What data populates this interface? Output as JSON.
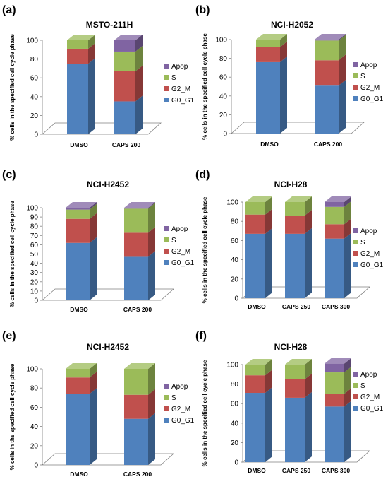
{
  "colors": {
    "G0_G1": "#4f81bd",
    "G2_M": "#c0504d",
    "S": "#9bbb59",
    "Apop": "#8064a2"
  },
  "chart_data": [
    {
      "panel": "(a)",
      "type": "bar",
      "stacked": true,
      "style": "3d-cylinder-stack",
      "title": "MSTO-211H",
      "ylabel": "% cells in the specified cell cycle phase",
      "ylim": [
        0,
        100
      ],
      "yticks": [
        0,
        20,
        40,
        60,
        80,
        100
      ],
      "categories": [
        "DMSO",
        "CAPS 200"
      ],
      "legend_position": "right",
      "series": [
        {
          "name": "G0_G1",
          "values": [
            75,
            35
          ]
        },
        {
          "name": "G2_M",
          "values": [
            16,
            32
          ]
        },
        {
          "name": "S",
          "values": [
            9,
            21
          ]
        },
        {
          "name": "Apop",
          "values": [
            0,
            12
          ]
        }
      ]
    },
    {
      "panel": "(b)",
      "type": "bar",
      "stacked": true,
      "style": "3d-cylinder-stack",
      "title": "NCI-H2052",
      "ylabel": "% cells in the specified cell cycle phase",
      "ylim": [
        0,
        100
      ],
      "yticks": [
        0,
        20,
        40,
        60,
        80,
        100
      ],
      "categories": [
        "DMSO",
        "CAPS 200"
      ],
      "legend_position": "right",
      "series": [
        {
          "name": "G0_G1",
          "values": [
            76,
            51
          ]
        },
        {
          "name": "G2_M",
          "values": [
            16,
            27
          ]
        },
        {
          "name": "S",
          "values": [
            8,
            21
          ]
        },
        {
          "name": "Apop",
          "values": [
            0,
            1
          ]
        }
      ]
    },
    {
      "panel": "(c)",
      "type": "bar",
      "stacked": true,
      "style": "3d-cylinder-stack",
      "title": "NCI-H2452",
      "ylabel": "% cells in the specified cell cycle phase",
      "ylim": [
        0,
        100
      ],
      "yticks": [
        0,
        10,
        20,
        30,
        40,
        50,
        60,
        70,
        80,
        90,
        100
      ],
      "categories": [
        "DMSO",
        "CAPS 200"
      ],
      "legend_position": "right",
      "series": [
        {
          "name": "G0_G1",
          "values": [
            62,
            47
          ]
        },
        {
          "name": "G2_M",
          "values": [
            26,
            26
          ]
        },
        {
          "name": "S",
          "values": [
            10,
            26
          ]
        },
        {
          "name": "Apop",
          "values": [
            2,
            1
          ]
        }
      ]
    },
    {
      "panel": "(d)",
      "type": "bar",
      "stacked": true,
      "style": "3d-cylinder-stack",
      "title": "NCI-H28",
      "ylabel": "% cells in the specified cell cycle phase",
      "ylim": [
        0,
        100
      ],
      "yticks": [
        0,
        20,
        40,
        60,
        80,
        100
      ],
      "categories": [
        "DMSO",
        "CAPS 250",
        "CAPS 300"
      ],
      "legend_position": "right",
      "series": [
        {
          "name": "G0_G1",
          "values": [
            67,
            67,
            62
          ]
        },
        {
          "name": "G2_M",
          "values": [
            20,
            19,
            15
          ]
        },
        {
          "name": "S",
          "values": [
            13,
            14,
            18
          ]
        },
        {
          "name": "Apop",
          "values": [
            0,
            0,
            5
          ]
        }
      ]
    },
    {
      "panel": "(e)",
      "type": "bar",
      "stacked": true,
      "style": "3d-cylinder-stack",
      "title": "NCI-H2452",
      "ylabel": "% cells in the specified cell cycle phase",
      "ylim": [
        0,
        100
      ],
      "yticks": [
        0,
        20,
        40,
        60,
        80,
        100
      ],
      "categories": [
        "DMSO",
        "CAPS 200"
      ],
      "legend_position": "right",
      "series": [
        {
          "name": "G0_G1",
          "values": [
            74,
            48
          ]
        },
        {
          "name": "G2_M",
          "values": [
            17,
            25
          ]
        },
        {
          "name": "S",
          "values": [
            9,
            27
          ]
        },
        {
          "name": "Apop",
          "values": [
            0,
            0
          ]
        }
      ]
    },
    {
      "panel": "(f)",
      "type": "bar",
      "stacked": true,
      "style": "3d-cylinder-stack",
      "title": "NCI-H28",
      "ylabel": "% cells in the specified cell cycle phase",
      "ylim": [
        0,
        100
      ],
      "yticks": [
        0,
        20,
        40,
        60,
        80,
        100
      ],
      "categories": [
        "DMSO",
        "CAPS 250",
        "CAPS 300"
      ],
      "legend_position": "right",
      "series": [
        {
          "name": "G0_G1",
          "values": [
            71,
            66,
            57
          ]
        },
        {
          "name": "G2_M",
          "values": [
            18,
            19,
            13
          ]
        },
        {
          "name": "S",
          "values": [
            11,
            15,
            22
          ]
        },
        {
          "name": "Apop",
          "values": [
            0,
            0,
            9
          ]
        }
      ]
    }
  ]
}
